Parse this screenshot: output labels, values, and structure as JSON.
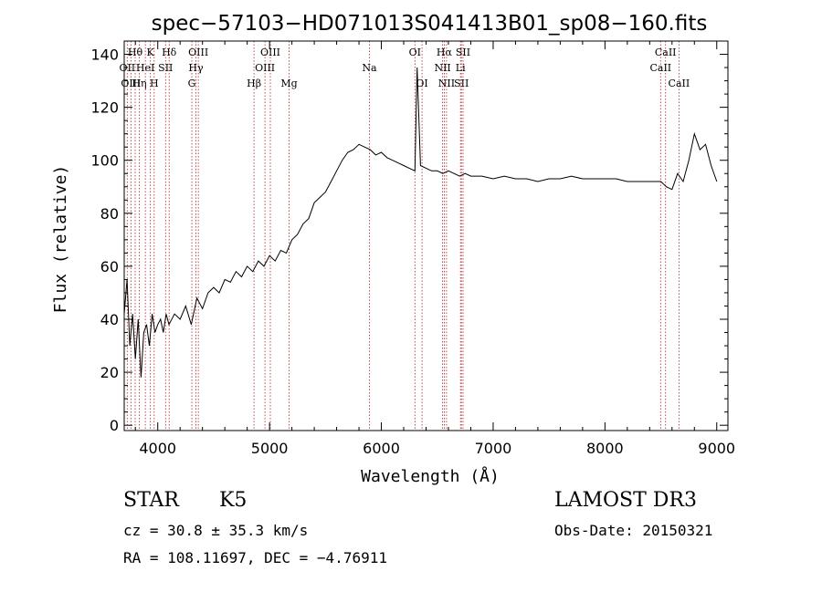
{
  "chart_data": {
    "type": "line",
    "title": "spec−57103−HD071013S041413B01_sp08−160.fits",
    "xlabel": "Wavelength (Å)",
    "ylabel": "Flux (relative)",
    "xlim": [
      3700,
      9100
    ],
    "ylim": [
      -2,
      145
    ],
    "xticks": [
      4000,
      5000,
      6000,
      7000,
      8000,
      9000
    ],
    "yticks": [
      0,
      20,
      40,
      60,
      80,
      100,
      120,
      140
    ],
    "xtick_labels": [
      "4000",
      "5000",
      "6000",
      "7000",
      "8000",
      "9000"
    ],
    "ytick_labels": [
      "0",
      "20",
      "40",
      "60",
      "80",
      "100",
      "120",
      "140"
    ],
    "grid": false,
    "line_color": "#000000",
    "marker_color": "#b22222",
    "series": [
      {
        "x": [
          3700,
          3725,
          3750,
          3775,
          3800,
          3825,
          3850,
          3875,
          3900,
          3925,
          3950,
          3975,
          4000,
          4025,
          4050,
          4075,
          4100,
          4150,
          4200,
          4250,
          4300,
          4350,
          4400,
          4450,
          4500,
          4550,
          4600,
          4650,
          4700,
          4750,
          4800,
          4850,
          4900,
          4950,
          5000,
          5050,
          5100,
          5150,
          5200,
          5250,
          5300,
          5350,
          5400,
          5450,
          5500,
          5550,
          5600,
          5650,
          5700,
          5750,
          5800,
          5850,
          5900,
          5950,
          6000,
          6050,
          6100,
          6150,
          6200,
          6250,
          6300,
          6320,
          6350,
          6400,
          6450,
          6500,
          6550,
          6600,
          6650,
          6700,
          6750,
          6800,
          6900,
          7000,
          7100,
          7200,
          7300,
          7400,
          7500,
          7600,
          7700,
          7800,
          7900,
          8000,
          8100,
          8200,
          8300,
          8400,
          8500,
          8550,
          8600,
          8650,
          8700,
          8750,
          8800,
          8850,
          8900,
          8950,
          9000
        ],
        "values": [
          42,
          55,
          30,
          42,
          25,
          40,
          18,
          35,
          38,
          30,
          42,
          35,
          38,
          40,
          35,
          42,
          38,
          42,
          40,
          45,
          38,
          48,
          44,
          50,
          52,
          50,
          55,
          54,
          58,
          56,
          60,
          58,
          62,
          60,
          64,
          62,
          66,
          65,
          70,
          72,
          76,
          78,
          84,
          86,
          88,
          92,
          96,
          100,
          103,
          104,
          106,
          105,
          104,
          102,
          103,
          101,
          100,
          99,
          98,
          97,
          96,
          135,
          98,
          97,
          96,
          96,
          95,
          96,
          95,
          94,
          95,
          94,
          94,
          93,
          94,
          93,
          93,
          92,
          93,
          93,
          94,
          93,
          93,
          93,
          93,
          92,
          92,
          92,
          92,
          90,
          89,
          95,
          92,
          100,
          110,
          104,
          106,
          98,
          92
        ]
      }
    ],
    "spectral_lines": [
      {
        "label": "Hθ",
        "x": 3798,
        "row": 0
      },
      {
        "label": "OII",
        "x": 3727,
        "row": 1
      },
      {
        "label": "OIII",
        "x": 3760,
        "row": 2
      },
      {
        "label": "Hη",
        "x": 3835,
        "row": 2
      },
      {
        "label": "HeI",
        "x": 3889,
        "row": 1
      },
      {
        "label": "K",
        "x": 3934,
        "row": 0
      },
      {
        "label": "H",
        "x": 3968,
        "row": 2
      },
      {
        "label": "SII",
        "x": 4070,
        "row": 1
      },
      {
        "label": "Hδ",
        "x": 4102,
        "row": 0
      },
      {
        "label": "G",
        "x": 4305,
        "row": 2
      },
      {
        "label": "Hγ",
        "x": 4341,
        "row": 1
      },
      {
        "label": "OIII",
        "x": 4363,
        "row": 0
      },
      {
        "label": "Hβ",
        "x": 4861,
        "row": 2
      },
      {
        "label": "OIII",
        "x": 4959,
        "row": 1
      },
      {
        "label": "OIII",
        "x": 5007,
        "row": 0
      },
      {
        "label": "Mg",
        "x": 5175,
        "row": 2
      },
      {
        "label": "Na",
        "x": 5893,
        "row": 1
      },
      {
        "label": "OI",
        "x": 6300,
        "row": 0
      },
      {
        "label": "OI",
        "x": 6364,
        "row": 2
      },
      {
        "label": "NII",
        "x": 6548,
        "row": 1
      },
      {
        "label": "Hα",
        "x": 6563,
        "row": 0
      },
      {
        "label": "NII",
        "x": 6583,
        "row": 2
      },
      {
        "label": "SII",
        "x": 6716,
        "row": 2
      },
      {
        "label": "Li",
        "x": 6708,
        "row": 1
      },
      {
        "label": "SII",
        "x": 6731,
        "row": 0
      },
      {
        "label": "CaII",
        "x": 8498,
        "row": 1
      },
      {
        "label": "CaII",
        "x": 8542,
        "row": 0
      },
      {
        "label": "CaII",
        "x": 8662,
        "row": 2
      }
    ]
  },
  "info": {
    "object_type": "STAR",
    "subclass": "K5",
    "survey": "LAMOST DR3",
    "redshift": "cz = 30.8 ± 35.3 km/s",
    "obs_date": "Obs-Date: 20150321",
    "coords": "RA = 108.11697, DEC =  −4.76911"
  }
}
